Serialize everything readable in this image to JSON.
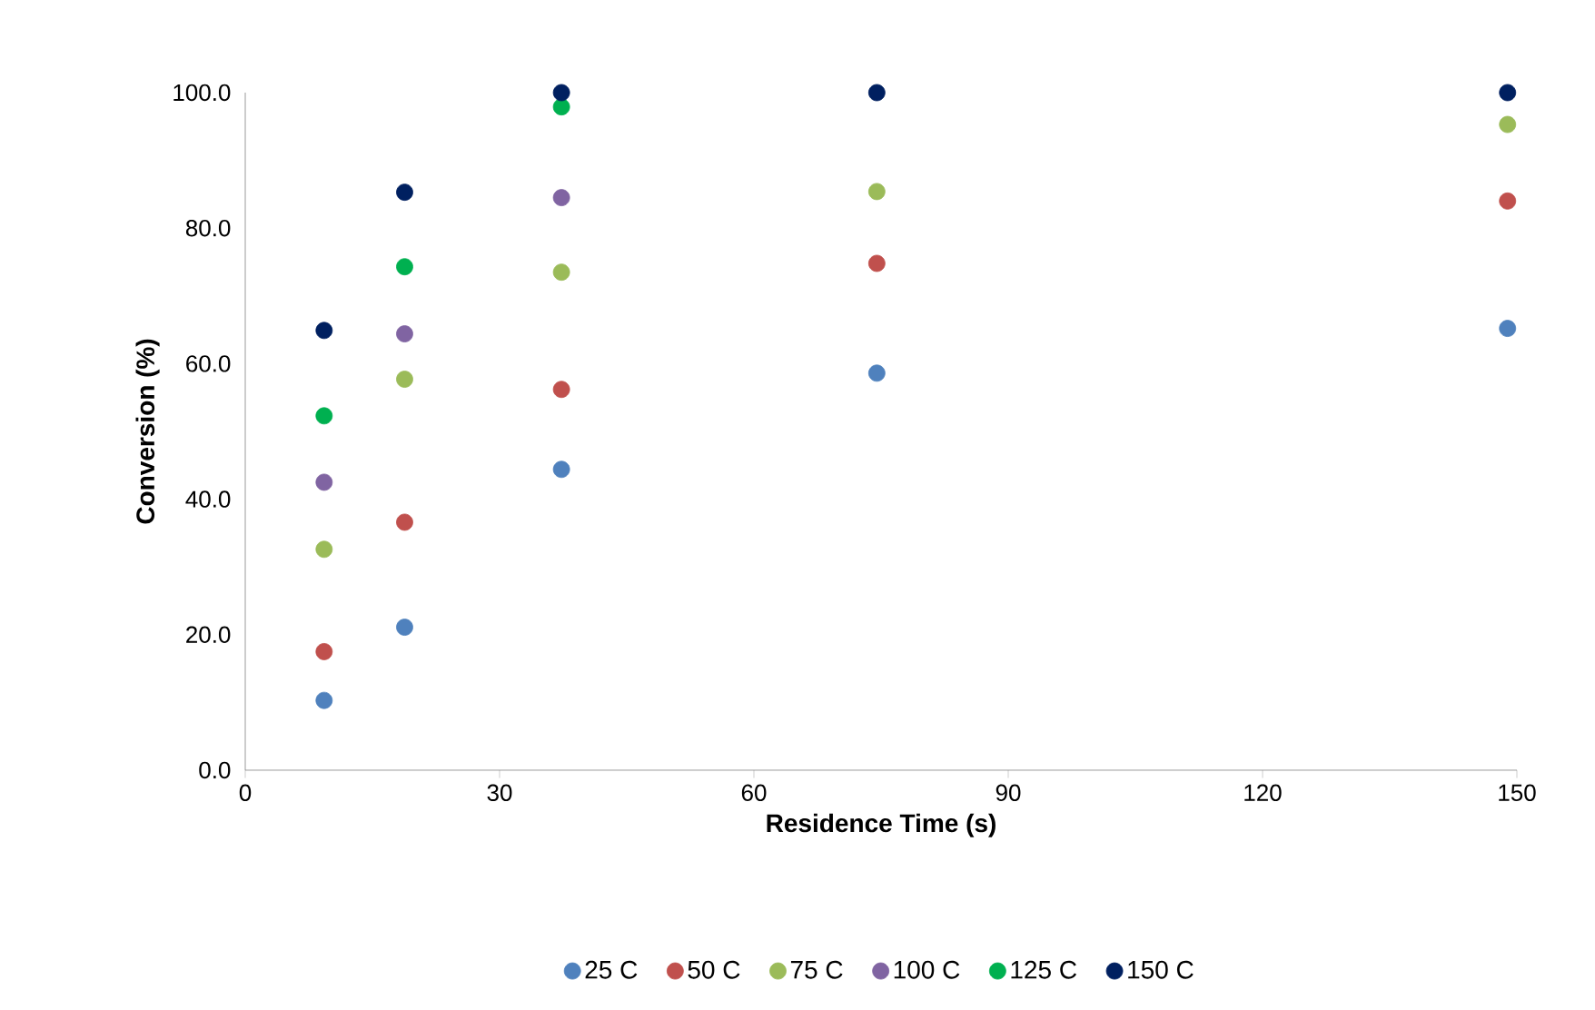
{
  "chart_data": {
    "type": "scatter",
    "xlabel": "Residence Time (s)",
    "ylabel": "Conversion (%)",
    "x": [
      9.3,
      18.8,
      37.3,
      74.5,
      148.9
    ],
    "series": [
      {
        "name": "25 C",
        "color": "#4f81bd",
        "values": [
          10.3,
          21.1,
          44.4,
          58.6,
          65.2
        ]
      },
      {
        "name": "50 C",
        "color": "#c0504d",
        "values": [
          17.5,
          36.6,
          56.2,
          74.8,
          84.0
        ]
      },
      {
        "name": "75 C",
        "color": "#9bbb59",
        "values": [
          32.6,
          57.7,
          73.5,
          85.4,
          95.3
        ]
      },
      {
        "name": "100 C",
        "color": "#8064a2",
        "values": [
          42.5,
          64.4,
          84.5,
          null,
          null
        ]
      },
      {
        "name": "125 C",
        "color": "#00b050",
        "values": [
          52.3,
          74.3,
          97.9,
          null,
          null
        ]
      },
      {
        "name": "150 C",
        "color": "#002060",
        "values": [
          64.9,
          85.3,
          100.0,
          100.0,
          100.0
        ]
      }
    ],
    "xlim": [
      0,
      150
    ],
    "xticks": [
      0,
      30,
      60,
      90,
      120,
      150
    ],
    "ylim": [
      0,
      100
    ],
    "yticks": [
      {
        "value": 0,
        "label": "0.0"
      },
      {
        "value": 20,
        "label": "20.0"
      },
      {
        "value": 40,
        "label": "40.0"
      },
      {
        "value": 60,
        "label": "60.0"
      },
      {
        "value": 80,
        "label": "80.0"
      },
      {
        "value": 100,
        "label": "100.0"
      }
    ],
    "grid": false,
    "legend": "bottom",
    "marker": "circle"
  }
}
